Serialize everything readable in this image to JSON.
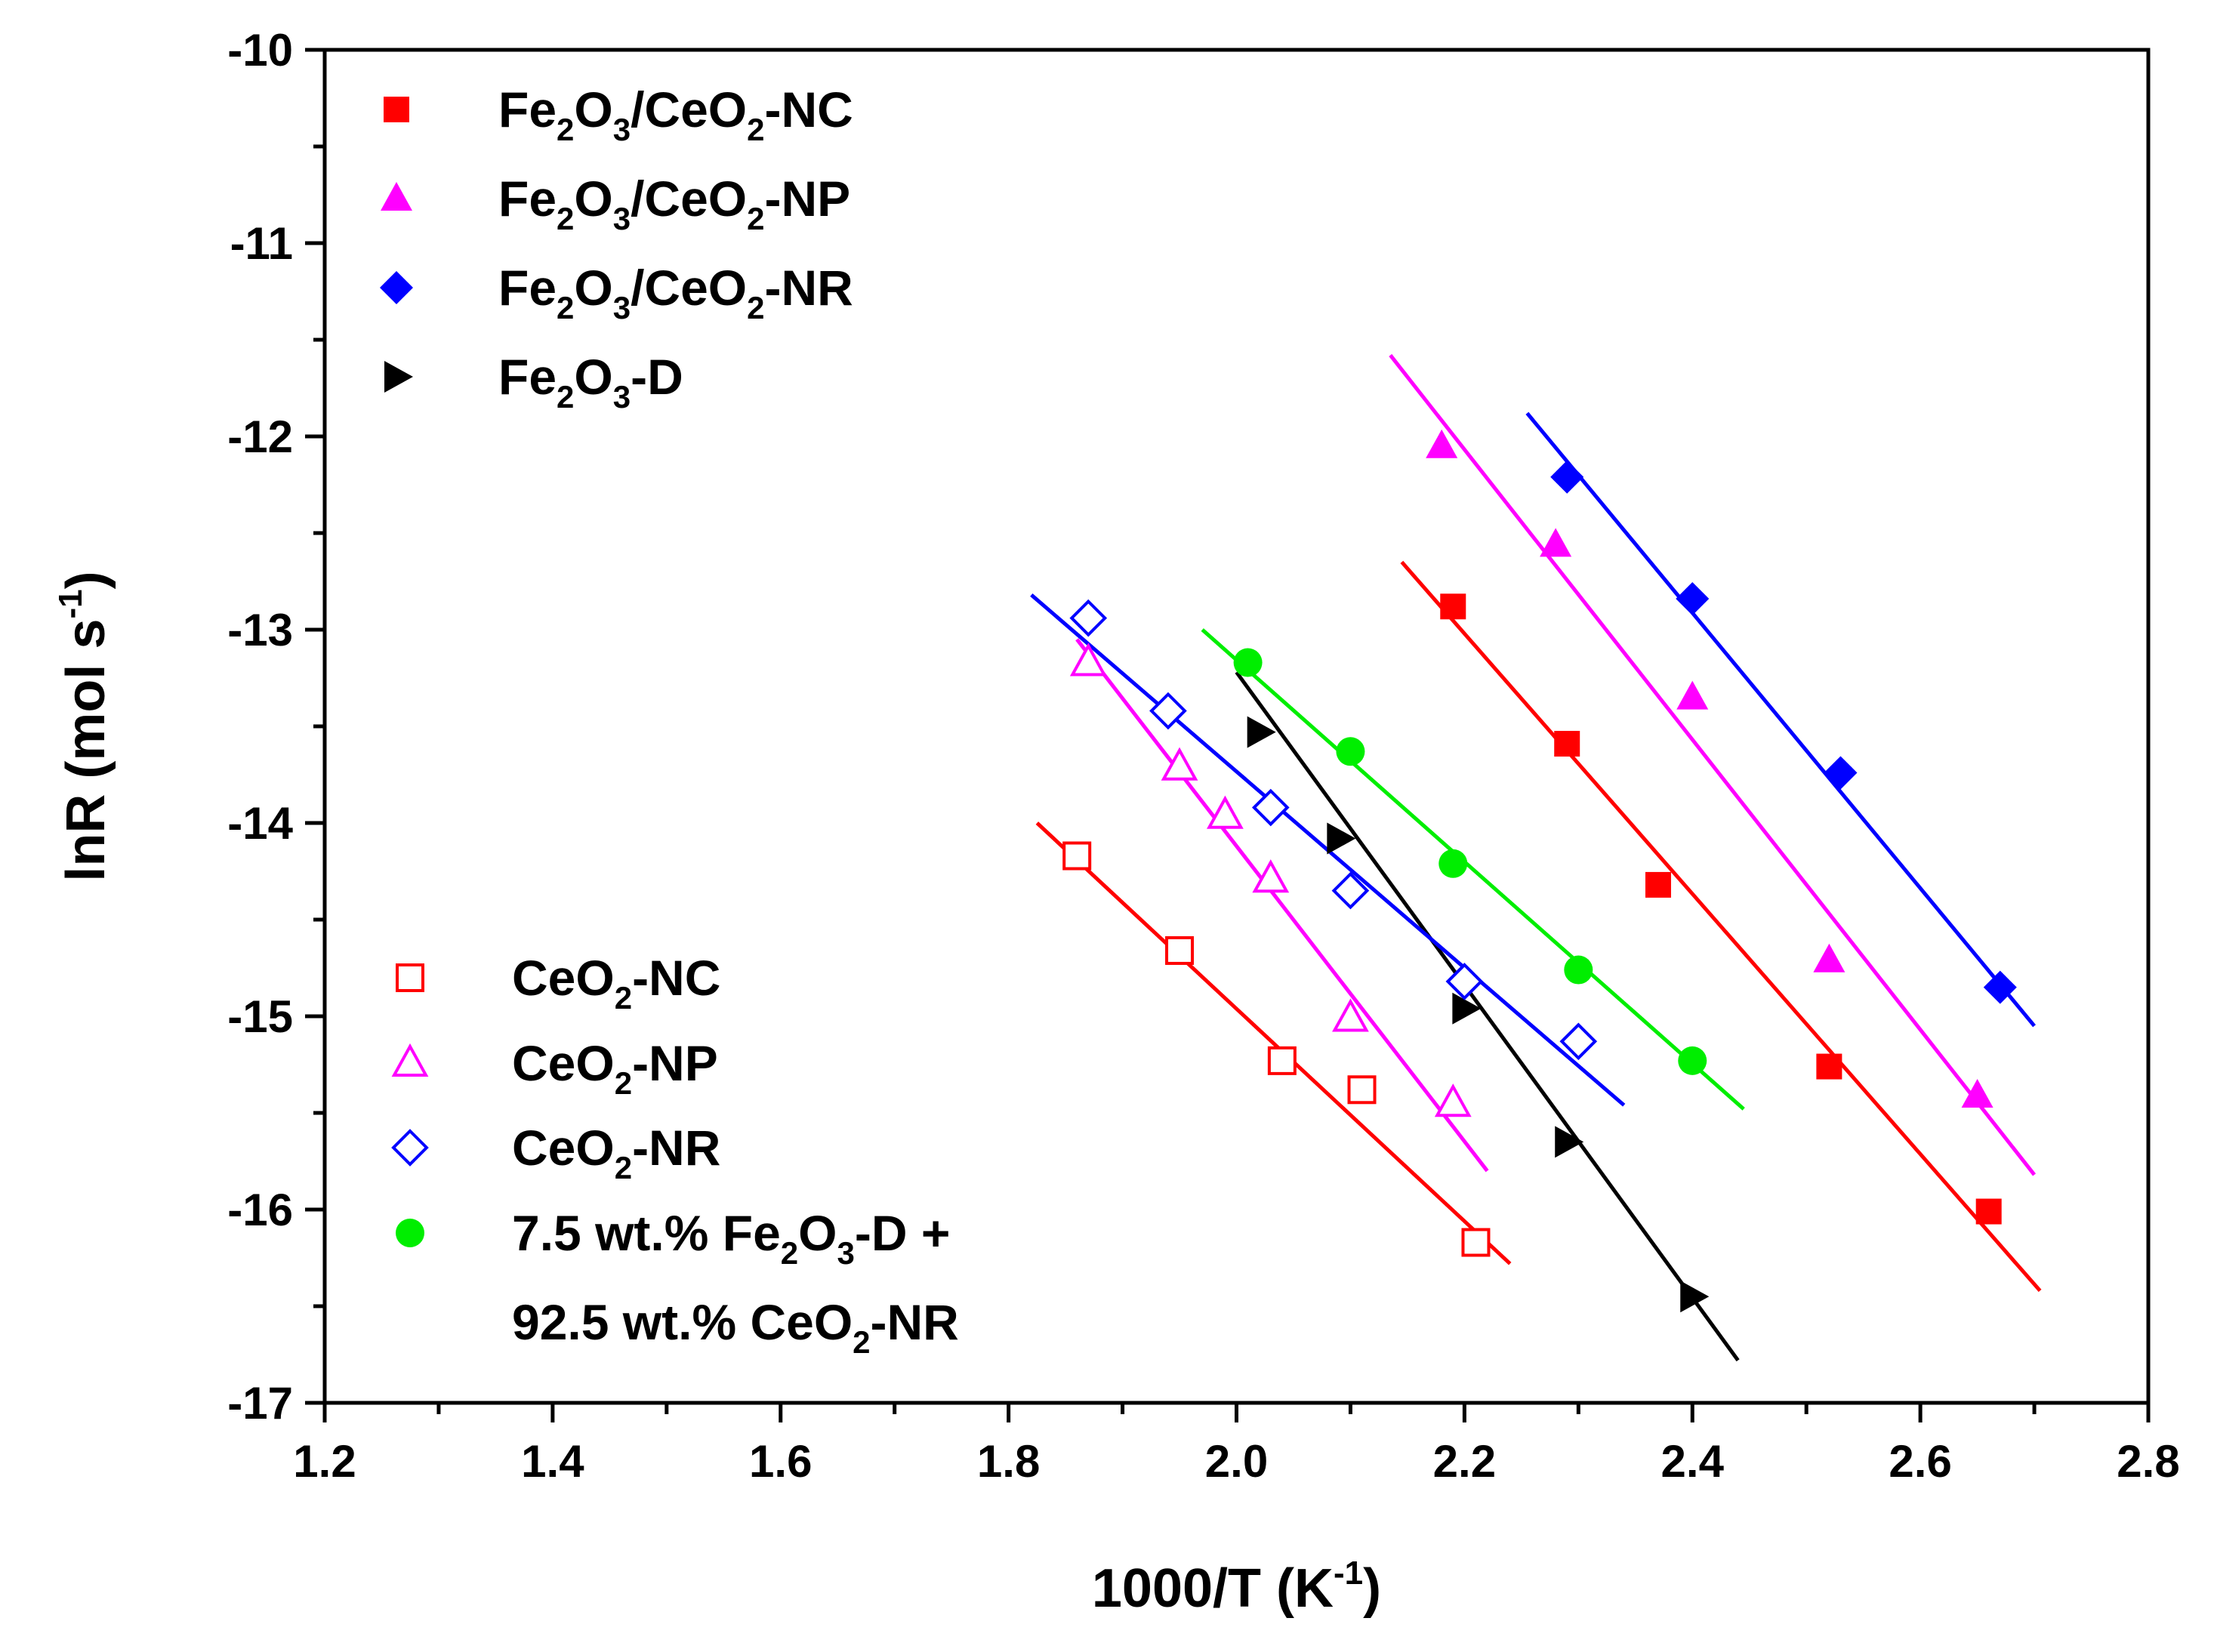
{
  "chart_data": {
    "type": "scatter",
    "xlabel": "1000/T (K",
    "xlabel_sup": "-1",
    "xlabel_close": ")",
    "ylabel": "lnR (mol s",
    "ylabel_sup": "-1",
    "ylabel_close": ")",
    "xlim": [
      1.2,
      2.8
    ],
    "ylim": [
      -17,
      -10
    ],
    "xticks": [
      1.2,
      1.4,
      1.6,
      1.8,
      2.0,
      2.2,
      2.4,
      2.6,
      2.8
    ],
    "xtick_labels": [
      "1.2",
      "1.4",
      "1.6",
      "1.8",
      "2.0",
      "2.2",
      "2.4",
      "2.6",
      "2.8"
    ],
    "yticks": [
      -10,
      -11,
      -12,
      -13,
      -14,
      -15,
      -16,
      -17
    ],
    "ytick_labels": [
      "-10",
      "-11",
      "-12",
      "-13",
      "-14",
      "-15",
      "-16",
      "-17"
    ],
    "series": [
      {
        "name": "Fe2O3/CeO2-NC",
        "legend": [
          [
            "Fe",
            "n"
          ],
          [
            "2",
            "s"
          ],
          [
            "O",
            "n"
          ],
          [
            "3",
            "s"
          ],
          [
            "/CeO",
            "n"
          ],
          [
            "2",
            "s"
          ],
          [
            "-NC",
            "n"
          ]
        ],
        "color": "#ff0000",
        "marker": "square",
        "filled": true,
        "legend_group": "top",
        "x": [
          2.19,
          2.29,
          2.37,
          2.52,
          2.66
        ],
        "y": [
          -12.88,
          -13.59,
          -14.32,
          -15.26,
          -16.01
        ],
        "fit": [
          [
            2.145,
            -12.65
          ],
          [
            2.705,
            -16.42
          ]
        ]
      },
      {
        "name": "Fe2O3/CeO2-NP",
        "legend": [
          [
            "Fe",
            "n"
          ],
          [
            "2",
            "s"
          ],
          [
            "O",
            "n"
          ],
          [
            "3",
            "s"
          ],
          [
            "/CeO",
            "n"
          ],
          [
            "2",
            "s"
          ],
          [
            "-NP",
            "n"
          ]
        ],
        "color": "#ff00ff",
        "marker": "triangle",
        "filled": true,
        "legend_group": "top",
        "x": [
          2.18,
          2.28,
          2.4,
          2.52,
          2.65
        ],
        "y": [
          -12.05,
          -12.56,
          -13.35,
          -14.71,
          -15.41
        ],
        "fit": [
          [
            2.135,
            -11.58
          ],
          [
            2.7,
            -15.82
          ]
        ]
      },
      {
        "name": "Fe2O3/CeO2-NR",
        "legend": [
          [
            "Fe",
            "n"
          ],
          [
            "2",
            "s"
          ],
          [
            "O",
            "n"
          ],
          [
            "3",
            "s"
          ],
          [
            "/CeO",
            "n"
          ],
          [
            "2",
            "s"
          ],
          [
            "-NR",
            "n"
          ]
        ],
        "color": "#0000ff",
        "marker": "diamond",
        "filled": true,
        "legend_group": "top",
        "x": [
          2.29,
          2.4,
          2.53,
          2.67
        ],
        "y": [
          -12.21,
          -12.84,
          -13.74,
          -14.85
        ],
        "fit": [
          [
            2.255,
            -11.88
          ],
          [
            2.7,
            -15.05
          ]
        ]
      },
      {
        "name": "Fe2O3-D",
        "legend": [
          [
            "Fe",
            "n"
          ],
          [
            "2",
            "s"
          ],
          [
            "O",
            "n"
          ],
          [
            "3",
            "s"
          ],
          [
            "-D",
            "n"
          ]
        ],
        "color": "#000000",
        "marker": "triangle-right",
        "filled": true,
        "legend_group": "top",
        "x": [
          2.02,
          2.09,
          2.2,
          2.29,
          2.4
        ],
        "y": [
          -13.53,
          -14.08,
          -14.96,
          -15.65,
          -16.45
        ],
        "fit": [
          [
            2.0,
            -13.22
          ],
          [
            2.44,
            -16.78
          ]
        ]
      },
      {
        "name": "CeO2-NC",
        "legend": [
          [
            "CeO",
            "n"
          ],
          [
            "2",
            "s"
          ],
          [
            "-NC",
            "n"
          ]
        ],
        "color": "#ff0000",
        "marker": "square",
        "filled": false,
        "legend_group": "bottom",
        "x": [
          1.86,
          1.95,
          2.04,
          2.11,
          2.21
        ],
        "y": [
          -14.17,
          -14.66,
          -15.23,
          -15.38,
          -16.17
        ],
        "fit": [
          [
            1.825,
            -14.0
          ],
          [
            2.24,
            -16.28
          ]
        ]
      },
      {
        "name": "CeO2-NP",
        "legend": [
          [
            "CeO",
            "n"
          ],
          [
            "2",
            "s"
          ],
          [
            "-NP",
            "n"
          ]
        ],
        "color": "#ff00ff",
        "marker": "triangle",
        "filled": false,
        "legend_group": "bottom",
        "x": [
          1.87,
          1.95,
          1.99,
          2.03,
          2.1,
          2.19
        ],
        "y": [
          -13.17,
          -13.71,
          -13.96,
          -14.29,
          -15.01,
          -15.45
        ],
        "fit": [
          [
            1.86,
            -13.05
          ],
          [
            2.22,
            -15.8
          ]
        ]
      },
      {
        "name": "CeO2-NR",
        "legend": [
          [
            "CeO",
            "n"
          ],
          [
            "2",
            "s"
          ],
          [
            "-NR",
            "n"
          ]
        ],
        "color": "#0000ff",
        "marker": "diamond",
        "filled": false,
        "legend_group": "bottom",
        "x": [
          1.87,
          1.94,
          2.03,
          2.1,
          2.2,
          2.3
        ],
        "y": [
          -12.94,
          -13.42,
          -13.92,
          -14.35,
          -14.82,
          -15.13
        ],
        "fit": [
          [
            1.82,
            -12.82
          ],
          [
            2.34,
            -15.46
          ]
        ]
      },
      {
        "name": "7.5 wt.% Fe2O3-D + 92.5 wt.% CeO2-NR",
        "legend": [
          [
            "7.5 wt.% Fe",
            "n"
          ],
          [
            "2",
            "s"
          ],
          [
            "O",
            "n"
          ],
          [
            "3",
            "s"
          ],
          [
            "-D +",
            "n"
          ]
        ],
        "legend_line2": [
          [
            "92.5 wt.% CeO",
            "n"
          ],
          [
            "2",
            "s"
          ],
          [
            "-NR",
            "n"
          ]
        ],
        "color": "#00ee00",
        "marker": "circle",
        "filled": true,
        "legend_group": "bottom",
        "x": [
          2.01,
          2.1,
          2.19,
          2.3,
          2.4
        ],
        "y": [
          -13.17,
          -13.63,
          -14.21,
          -14.76,
          -15.23
        ],
        "fit": [
          [
            1.97,
            -13.0
          ],
          [
            2.445,
            -15.48
          ]
        ]
      }
    ]
  }
}
